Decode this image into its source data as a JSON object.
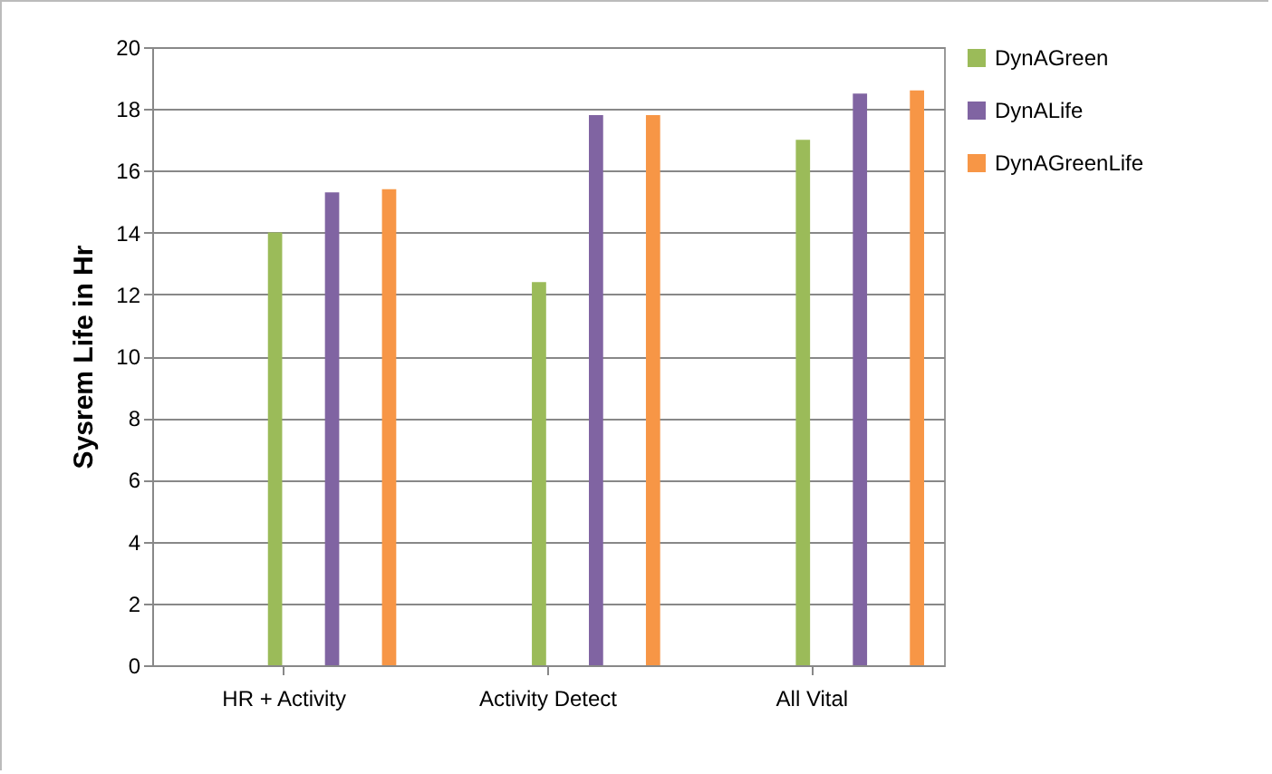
{
  "chart_data": {
    "type": "bar",
    "ylabel": "Sysrem Life in Hr",
    "categories": [
      "HR + Activity",
      "Activity Detect",
      "All Vital"
    ],
    "series": [
      {
        "name": "DynAGreen",
        "color": "#9bbb59",
        "values": [
          14.0,
          12.4,
          17.0
        ]
      },
      {
        "name": "DynALife",
        "color": "#8064a2",
        "values": [
          15.3,
          17.8,
          18.5
        ]
      },
      {
        "name": "DynAGreenLife",
        "color": "#f79646",
        "values": [
          15.4,
          17.8,
          18.6
        ]
      }
    ],
    "ylim": [
      0,
      20
    ],
    "yticks": [
      0,
      2,
      4,
      6,
      8,
      10,
      12,
      14,
      16,
      18,
      20
    ],
    "grid": "y",
    "legend": "right"
  }
}
